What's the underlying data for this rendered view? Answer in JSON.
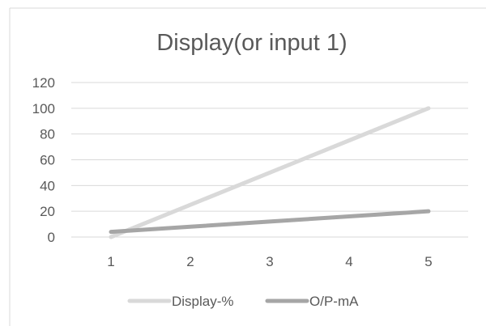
{
  "chart_data": {
    "type": "line",
    "title": "Display(or input 1)",
    "xlabel": "",
    "ylabel": "",
    "x": [
      1,
      2,
      3,
      4,
      5
    ],
    "ylim": [
      0,
      120
    ],
    "yticks": [
      0,
      20,
      40,
      60,
      80,
      100,
      120
    ],
    "grid": true,
    "legend_position": "bottom",
    "series": [
      {
        "name": "Display-%",
        "values": [
          0,
          25,
          50,
          75,
          100
        ],
        "color": "#d9d9d9"
      },
      {
        "name": "O/P-mA",
        "values": [
          4,
          8,
          12,
          16,
          20
        ],
        "color": "#a6a6a6"
      }
    ]
  }
}
